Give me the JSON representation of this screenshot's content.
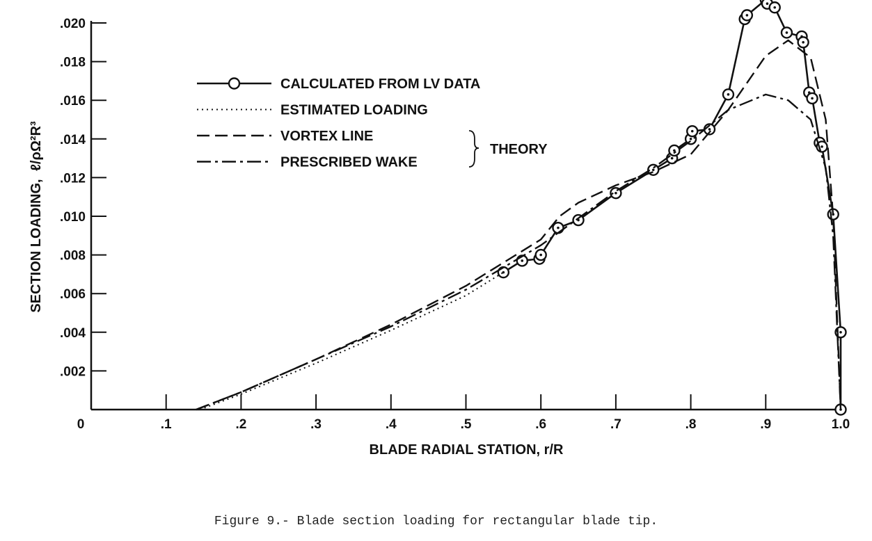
{
  "chart_data": {
    "type": "line",
    "xlabel": "BLADE RADIAL STATION, r/R",
    "ylabel": "SECTION LOADING,",
    "ylabel_symbol": "ℓ/ρΩ²R³",
    "xlim": [
      0,
      1.0
    ],
    "ylim": [
      0,
      0.02
    ],
    "x_ticks": [
      ".1",
      ".2",
      ".3",
      ".4",
      ".5",
      ".6",
      ".7",
      ".8",
      ".9",
      "1.0"
    ],
    "y_ticks": [
      ".002",
      ".004",
      ".006",
      ".008",
      ".010",
      ".012",
      ".014",
      ".016",
      ".018",
      ".020"
    ],
    "origin_label": "0",
    "grid": false,
    "legend_position": "top-left",
    "theory_label": "THEORY",
    "series": [
      {
        "name": "CALCULATED FROM LV DATA",
        "style": "solid-circles",
        "x": [
          0.55,
          0.575,
          0.598,
          0.6,
          0.623,
          0.65,
          0.7,
          0.75,
          0.775,
          0.778,
          0.8,
          0.802,
          0.825,
          0.85,
          0.872,
          0.875,
          0.9,
          0.902,
          0.912,
          0.928,
          0.948,
          0.95,
          0.958,
          0.962,
          0.972,
          0.975,
          0.99,
          1.0,
          1.0
        ],
        "y": [
          0.0071,
          0.0077,
          0.0078,
          0.008,
          0.0094,
          0.0098,
          0.0112,
          0.0124,
          0.013,
          0.0134,
          0.014,
          0.0144,
          0.0145,
          0.0163,
          0.0202,
          0.0204,
          0.0212,
          0.021,
          0.0208,
          0.0195,
          0.0193,
          0.019,
          0.0164,
          0.0161,
          0.0138,
          0.0136,
          0.0101,
          0.004,
          0.0
        ]
      },
      {
        "name": "ESTIMATED LOADING",
        "style": "dotted",
        "x": [
          0.145,
          0.2,
          0.3,
          0.4,
          0.5,
          0.55
        ],
        "y": [
          0.0,
          0.0008,
          0.0024,
          0.0041,
          0.0059,
          0.0071
        ]
      },
      {
        "name": "VORTEX LINE",
        "style": "dashed",
        "x": [
          0.14,
          0.2,
          0.3,
          0.4,
          0.5,
          0.6,
          0.625,
          0.65,
          0.7,
          0.75,
          0.8,
          0.85,
          0.9,
          0.93,
          0.96,
          0.98,
          0.99,
          1.0
        ],
        "y": [
          0.0,
          0.0009,
          0.0026,
          0.0044,
          0.0064,
          0.0088,
          0.01,
          0.0107,
          0.0116,
          0.0123,
          0.0132,
          0.0155,
          0.0183,
          0.0191,
          0.0182,
          0.015,
          0.01,
          0.0
        ]
      },
      {
        "name": "PRESCRIBED WAKE",
        "style": "dash-dot",
        "x": [
          0.14,
          0.2,
          0.3,
          0.4,
          0.5,
          0.6,
          0.65,
          0.7,
          0.75,
          0.8,
          0.85,
          0.9,
          0.93,
          0.96,
          0.98,
          0.99,
          1.0
        ],
        "y": [
          0.0,
          0.0009,
          0.0026,
          0.0043,
          0.0062,
          0.0085,
          0.0099,
          0.0113,
          0.0125,
          0.0139,
          0.0155,
          0.0163,
          0.016,
          0.015,
          0.0125,
          0.009,
          0.0
        ]
      }
    ]
  },
  "caption": "Figure 9.- Blade section loading for rectangular blade tip."
}
